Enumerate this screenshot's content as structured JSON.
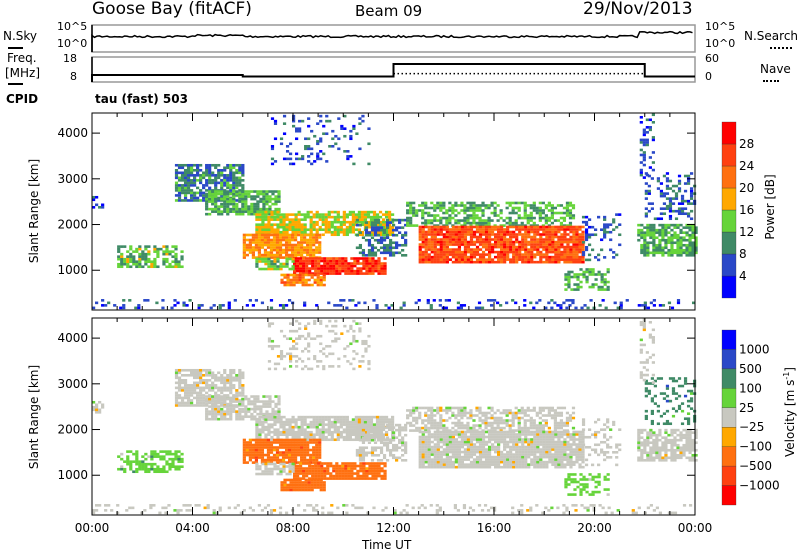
{
  "header": {
    "radar": "Goose Bay (fitACF)",
    "beam": "Beam 09",
    "date": "29/Nov/2013"
  },
  "noise_panel": {
    "left_label": "N.Sky",
    "right_label": "N.Search",
    "left_ticks": [
      "10^5",
      "10^0"
    ],
    "right_ticks": [
      "10^5",
      "10^0"
    ]
  },
  "freq_panel": {
    "left_label_1": "Freq.",
    "left_label_2": "[MHz]",
    "right_label": "Nave",
    "left_ticks": [
      "18",
      "8"
    ],
    "right_ticks": [
      "60",
      "0"
    ],
    "freq_steps": [
      [
        0,
        10.8
      ],
      [
        6,
        10.2
      ],
      [
        12,
        15.2
      ],
      [
        22,
        10.2
      ],
      [
        24,
        10.2
      ]
    ],
    "nave_steps": [
      [
        12,
        20
      ],
      [
        22,
        20
      ]
    ]
  },
  "cpid": {
    "label": "CPID",
    "value": "tau (fast) 503"
  },
  "chart_data": {
    "type": "heatmap",
    "xlabel": "Time UT",
    "ylabel": "Slant Range [km]",
    "xlim": [
      0,
      24
    ],
    "ylim": [
      130,
      4440
    ],
    "x_ticks": [
      "00:00",
      "04:00",
      "08:00",
      "12:00",
      "16:00",
      "20:00",
      "00:00"
    ],
    "y_ticks": [
      "1000",
      "2000",
      "3000",
      "4000"
    ],
    "power_colorbar": {
      "label": "Power [dB]",
      "ticks": [
        "28",
        "24",
        "20",
        "16",
        "12",
        "8",
        "4"
      ],
      "colors": [
        "#0000ff",
        "#2a48c8",
        "#3f8a66",
        "#66d43a",
        "#ffa800",
        "#ff7010",
        "#ff4010",
        "#ff0000"
      ]
    },
    "velocity_colorbar": {
      "label": "Velocity [m s-1]",
      "label_main": "Velocity",
      "label_unit": "[m s",
      "label_exp": "-1",
      "label_end": "]",
      "ticks": [
        "1000",
        "500",
        "100",
        "25",
        "-25",
        "-100",
        "-500",
        "-1000"
      ],
      "colors": [
        "#0000ff",
        "#2a48c8",
        "#3f8a66",
        "#66d43a",
        "#c8c8c0",
        "#ffa800",
        "#ff7010",
        "#ff4010",
        "#ff0000"
      ]
    },
    "echo_regions": [
      {
        "t": [
          0.0,
          24.0
        ],
        "r": [
          150,
          320
        ],
        "power": 6,
        "vel": 4,
        "density": 0.2
      },
      {
        "t": [
          0.0,
          0.4
        ],
        "r": [
          2350,
          2600
        ],
        "power": 6,
        "vel": 4,
        "density": 0.5
      },
      {
        "t": [
          1.0,
          3.6
        ],
        "r": [
          1050,
          1500
        ],
        "power": 13,
        "vel": 3,
        "density": 0.6
      },
      {
        "t": [
          3.3,
          6.0
        ],
        "r": [
          2500,
          3300
        ],
        "power": 9,
        "vel": 4,
        "density": 0.7
      },
      {
        "t": [
          4.5,
          7.5
        ],
        "r": [
          2200,
          2700
        ],
        "power": 12,
        "vel": 4,
        "density": 0.8
      },
      {
        "t": [
          6.5,
          12.0
        ],
        "r": [
          1750,
          2250
        ],
        "power": 16,
        "vel": 4,
        "density": 0.8
      },
      {
        "t": [
          6.0,
          9.0
        ],
        "r": [
          1250,
          1750
        ],
        "power": 20,
        "vel": 6,
        "density": 0.85
      },
      {
        "t": [
          8.0,
          11.6
        ],
        "r": [
          900,
          1250
        ],
        "power": 27,
        "vel": 6,
        "density": 0.9
      },
      {
        "t": [
          6.5,
          8.0
        ],
        "r": [
          1000,
          1250
        ],
        "power": 14,
        "vel": 4,
        "density": 0.7
      },
      {
        "t": [
          7.5,
          9.2
        ],
        "r": [
          650,
          900
        ],
        "power": 21,
        "vel": 6,
        "density": 0.8
      },
      {
        "t": [
          7.0,
          11.0
        ],
        "r": [
          3300,
          4400
        ],
        "power": 6,
        "vel": 4,
        "density": 0.2
      },
      {
        "t": [
          10.5,
          12.5
        ],
        "r": [
          1300,
          2100
        ],
        "power": 8,
        "vel": 4,
        "density": 0.5
      },
      {
        "t": [
          12.5,
          19.2
        ],
        "r": [
          1950,
          2450
        ],
        "power": 12,
        "vel": 4,
        "density": 0.6
      },
      {
        "t": [
          13.0,
          19.5
        ],
        "r": [
          1150,
          1950
        ],
        "power": 25,
        "vel": 4,
        "density": 0.9
      },
      {
        "t": [
          18.8,
          20.6
        ],
        "r": [
          550,
          1000
        ],
        "power": 12,
        "vel": 3,
        "density": 0.5
      },
      {
        "t": [
          19.5,
          21.0
        ],
        "r": [
          1200,
          2200
        ],
        "power": 7,
        "vel": 4,
        "density": 0.3
      },
      {
        "t": [
          21.7,
          24.0
        ],
        "r": [
          1300,
          2000
        ],
        "power": 12,
        "vel": 4,
        "density": 0.7
      },
      {
        "t": [
          22.0,
          24.0
        ],
        "r": [
          2100,
          3100
        ],
        "power": 7,
        "vel": 2,
        "density": 0.3
      },
      {
        "t": [
          21.8,
          22.4
        ],
        "r": [
          3000,
          4400
        ],
        "power": 6,
        "vel": 4,
        "density": 0.3
      }
    ]
  }
}
